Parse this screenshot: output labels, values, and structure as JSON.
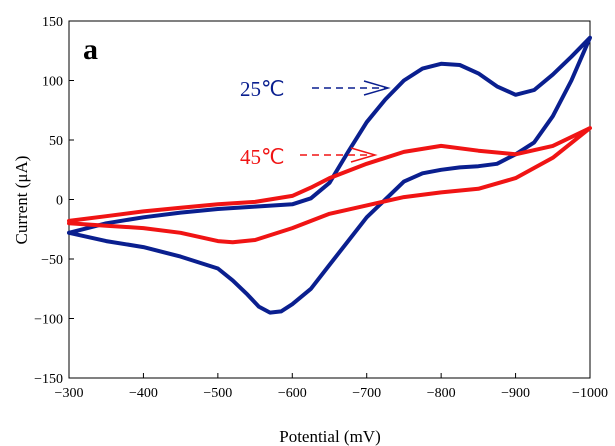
{
  "chart_data": {
    "type": "line",
    "panel_label": "a",
    "xlabel": "Potential (mV)",
    "ylabel": "Current (μA)",
    "xlim": [
      -300,
      -1000
    ],
    "ylim": [
      -150,
      150
    ],
    "x_ticks": [
      -300,
      -400,
      -500,
      -600,
      -700,
      -800,
      -900,
      -1000
    ],
    "y_ticks": [
      150,
      100,
      50,
      0,
      -50,
      -100,
      -150
    ],
    "grid": false,
    "series": [
      {
        "name": "25℃",
        "color": "#0a1f8f",
        "x": [
          -300,
          -350,
          -400,
          -450,
          -500,
          -550,
          -600,
          -625,
          -650,
          -675,
          -700,
          -725,
          -750,
          -775,
          -800,
          -825,
          -850,
          -875,
          -900,
          -925,
          -950,
          -975,
          -1000,
          -975,
          -950,
          -925,
          -900,
          -875,
          -850,
          -825,
          -800,
          -775,
          -750,
          -725,
          -700,
          -675,
          -650,
          -625,
          -600,
          -585,
          -570,
          -555,
          -540,
          -520,
          -500,
          -450,
          -400,
          -350,
          -300
        ],
        "y": [
          -28,
          -20,
          -15,
          -11,
          -8,
          -6,
          -4,
          1,
          14,
          40,
          65,
          84,
          100,
          110,
          114,
          113,
          106,
          95,
          88,
          92,
          105,
          120,
          136,
          100,
          70,
          48,
          38,
          30,
          28,
          27,
          25,
          22,
          15,
          0,
          -15,
          -35,
          -55,
          -75,
          -88,
          -94,
          -95,
          -90,
          -80,
          -68,
          -58,
          -48,
          -40,
          -35,
          -28
        ]
      },
      {
        "name": "45℃",
        "color": "#f01414",
        "x": [
          -300,
          -350,
          -400,
          -450,
          -500,
          -550,
          -600,
          -625,
          -650,
          -700,
          -750,
          -800,
          -850,
          -900,
          -950,
          -1000,
          -950,
          -900,
          -850,
          -800,
          -750,
          -700,
          -650,
          -600,
          -550,
          -520,
          -500,
          -450,
          -400,
          -350,
          -300
        ],
        "y": [
          -18,
          -14,
          -10,
          -7,
          -4,
          -2,
          3,
          10,
          18,
          30,
          40,
          45,
          41,
          38,
          45,
          60,
          35,
          18,
          9,
          6,
          2,
          -5,
          -12,
          -24,
          -34,
          -36,
          -35,
          -28,
          -24,
          -22,
          -20
        ]
      }
    ],
    "annotations": [
      {
        "text": "25℃",
        "color": "#0a1f8f"
      },
      {
        "text": "45℃",
        "color": "#f01414"
      }
    ]
  }
}
